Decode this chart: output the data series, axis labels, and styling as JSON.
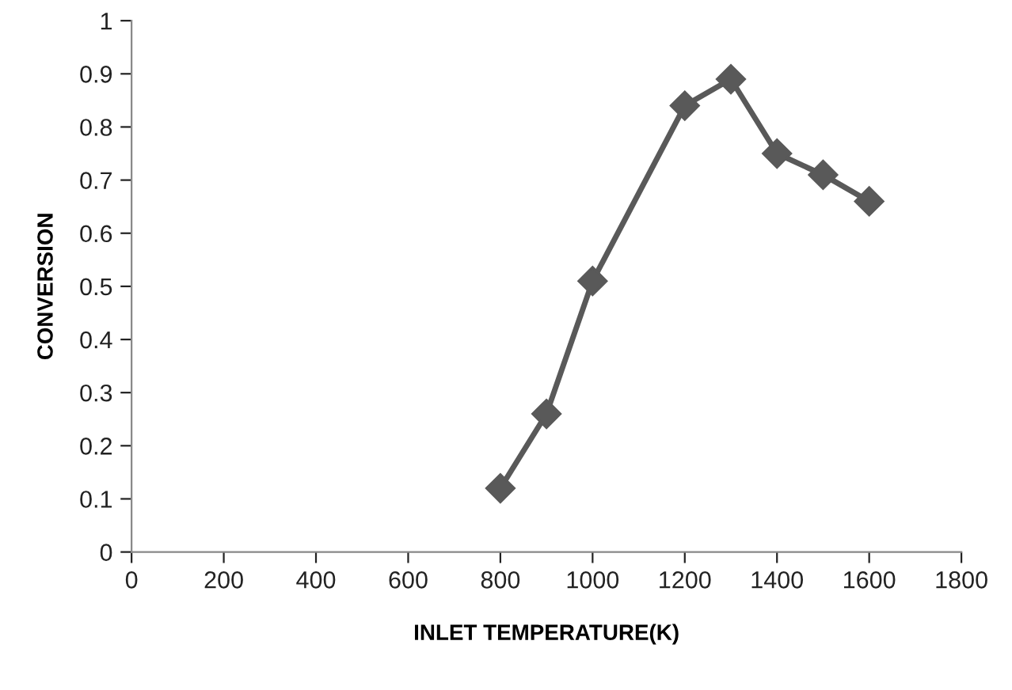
{
  "chart_data": {
    "type": "line",
    "xlabel": "INLET TEMPERATURE(K)",
    "ylabel": "CONVERSION",
    "x": [
      800,
      900,
      1000,
      1200,
      1300,
      1400,
      1500,
      1600
    ],
    "series": [
      {
        "color": "#595959",
        "values": [
          0.12,
          0.26,
          0.51,
          0.84,
          0.89,
          0.75,
          0.71,
          0.66
        ]
      }
    ],
    "xlim": [
      0,
      1800
    ],
    "xticks": [
      0,
      200,
      400,
      600,
      800,
      1000,
      1200,
      1400,
      1600,
      1800
    ],
    "ylim": [
      0,
      1
    ],
    "yticks": [
      0,
      0.1,
      0.2,
      0.3,
      0.4,
      0.5,
      0.6,
      0.7,
      0.8,
      0.9,
      1
    ],
    "marker": "diamond",
    "line_style": "solid",
    "grid": false,
    "legend": false
  }
}
